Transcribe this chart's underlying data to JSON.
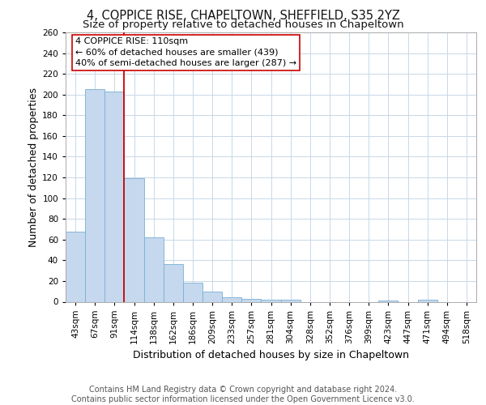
{
  "title_line1": "4, COPPICE RISE, CHAPELTOWN, SHEFFIELD, S35 2YZ",
  "title_line2": "Size of property relative to detached houses in Chapeltown",
  "xlabel": "Distribution of detached houses by size in Chapeltown",
  "ylabel": "Number of detached properties",
  "categories": [
    "43sqm",
    "67sqm",
    "91sqm",
    "114sqm",
    "138sqm",
    "162sqm",
    "186sqm",
    "209sqm",
    "233sqm",
    "257sqm",
    "281sqm",
    "304sqm",
    "328sqm",
    "352sqm",
    "376sqm",
    "399sqm",
    "423sqm",
    "447sqm",
    "471sqm",
    "494sqm",
    "518sqm"
  ],
  "values": [
    68,
    205,
    203,
    119,
    62,
    36,
    18,
    10,
    4,
    3,
    2,
    2,
    0,
    0,
    0,
    0,
    1,
    0,
    2,
    0,
    0
  ],
  "bar_color": "#c5d8ed",
  "bar_edge_color": "#7aafd4",
  "vline_color": "#cc0000",
  "vline_pos": 2.5,
  "annotation_text_line1": "4 COPPICE RISE: 110sqm",
  "annotation_text_line2": "← 60% of detached houses are smaller (439)",
  "annotation_text_line3": "40% of semi-detached houses are larger (287) →",
  "ylim": [
    0,
    260
  ],
  "yticks": [
    0,
    20,
    40,
    60,
    80,
    100,
    120,
    140,
    160,
    180,
    200,
    220,
    240,
    260
  ],
  "footer_text": "Contains HM Land Registry data © Crown copyright and database right 2024.\nContains public sector information licensed under the Open Government Licence v3.0.",
  "background_color": "#ffffff",
  "plot_bg_color": "#ffffff",
  "grid_color": "#c8d8e8",
  "title_fontsize": 10.5,
  "subtitle_fontsize": 9.5,
  "axis_label_fontsize": 9,
  "tick_fontsize": 7.5,
  "annotation_fontsize": 8,
  "footer_fontsize": 7
}
